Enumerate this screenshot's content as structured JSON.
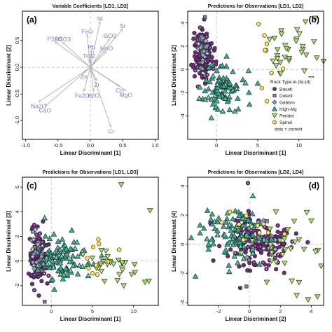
{
  "palette": {
    "basalt": "#6b2d7a",
    "dolerite": "#7d7d9a",
    "gabbro": "#9aa0bf",
    "highmg": "#3aa98f",
    "peridotite": "#a6d96a",
    "spinel": "#ffe14d",
    "arrow": "#b0b0b0",
    "vector_label": "#8080c0",
    "guide": "#bbbbbb"
  },
  "chart_data": [
    {
      "type": "biplot",
      "panel_label": "(a)",
      "title": "Variable Coefficients [LD1, LD2]",
      "xlabel": "Linear Discriminant [1]",
      "ylabel": "Linear Discriminant [2]",
      "xlim": [
        -1.05,
        1.05
      ],
      "ylim": [
        -1.35,
        1.05
      ],
      "xticks": [
        "-1.0",
        "-0.5",
        "0.0",
        "0.5",
        "1.0"
      ],
      "xtick_values": [
        -1.0,
        -0.5,
        0.0,
        0.5,
        1.0
      ],
      "yticks": [
        "-1.0",
        "-0.5",
        "0.0",
        "0.5"
      ],
      "ytick_values": [
        -1.0,
        -0.5,
        0.0,
        0.5
      ],
      "vectors": [
        {
          "name": "Ni",
          "x": 0.15,
          "y": 0.86
        },
        {
          "name": "Sr",
          "x": 0.5,
          "y": 0.72
        },
        {
          "name": "FeO",
          "x": -0.05,
          "y": 0.62
        },
        {
          "name": "SiO2",
          "x": 0.3,
          "y": 0.54
        },
        {
          "name": "P2O5",
          "x": -0.55,
          "y": 0.48
        },
        {
          "name": "Al2O3",
          "x": -0.43,
          "y": 0.47
        },
        {
          "name": "Rb",
          "x": 0.02,
          "y": 0.33
        },
        {
          "name": "MnO",
          "x": 0.25,
          "y": 0.3
        },
        {
          "name": "TiO2",
          "x": -0.02,
          "y": 0.16
        },
        {
          "name": "Zn",
          "x": -0.1,
          "y": -0.1
        },
        {
          "name": "Zr",
          "x": 0.1,
          "y": -0.25
        },
        {
          "name": "Co",
          "x": 0.45,
          "y": -0.35
        },
        {
          "name": "K2O",
          "x": 0.05,
          "y": -0.45
        },
        {
          "name": "Fe2O3",
          "x": -0.1,
          "y": -0.45
        },
        {
          "name": "MgO",
          "x": 0.55,
          "y": -0.44
        },
        {
          "name": "Na2O",
          "x": -0.8,
          "y": -0.65
        },
        {
          "name": "CaO",
          "x": -0.7,
          "y": -0.73
        },
        {
          "name": "Cr",
          "x": 0.32,
          "y": -1.12
        }
      ]
    },
    {
      "type": "scatter",
      "panel_label": "(b)",
      "title": "Predictions for Observations [LD1, LD2]",
      "xlabel": "Linear Discriminant [1]",
      "ylabel": "Linear Discriminant [2]",
      "xlim": [
        -3.5,
        13
      ],
      "ylim": [
        -6,
        5
      ],
      "xticks": [
        "0",
        "5",
        "10"
      ],
      "xtick_values": [
        0,
        5,
        10
      ],
      "yticks": [
        "-4",
        "-2",
        "0",
        "2",
        "4"
      ],
      "ytick_values": [
        -4,
        -2,
        0,
        2,
        4
      ],
      "legend": {
        "title": "Rock Type in (b)-(d)",
        "placement": "bottom-right",
        "entries": [
          "Basalt",
          "Dolerit",
          "Gabbro",
          "High-Mg",
          "Peridot",
          "Spinel"
        ],
        "note": "dots = correct"
      },
      "series": [
        {
          "name": "Basalt",
          "shape": "circle",
          "cx": -1.6,
          "cy": 1.3,
          "sx": 0.55,
          "sy": 1.0,
          "n": 140,
          "extra": [
            [
              -1.5,
              4.3
            ],
            [
              -2.0,
              3.6
            ],
            [
              -1.2,
              2.8
            ]
          ]
        },
        {
          "name": "Dolerit",
          "shape": "square",
          "cx": -1.7,
          "cy": 1.8,
          "sx": 0.3,
          "sy": 0.5,
          "n": 12,
          "extra": [
            [
              -1.4,
              4.5
            ]
          ]
        },
        {
          "name": "Gabbro",
          "shape": "diamond",
          "cx": -1.6,
          "cy": 2.0,
          "sx": 0.35,
          "sy": 0.6,
          "n": 25,
          "extra": []
        },
        {
          "name": "High-Mg",
          "shape": "triangle-up",
          "cx": 0.8,
          "cy": -1.5,
          "sx": 1.2,
          "sy": 1.1,
          "n": 95,
          "extra": [
            [
              4.0,
              -3.0
            ],
            [
              5.0,
              -1.2
            ]
          ]
        },
        {
          "name": "Peridot",
          "shape": "triangle-down",
          "cx": 8.5,
          "cy": 1.8,
          "sx": 2.0,
          "sy": 1.2,
          "n": 30,
          "extra": [
            [
              12.0,
              4.4
            ],
            [
              10.8,
              4.1
            ],
            [
              11.5,
              -0.8
            ],
            [
              9.5,
              -1.3
            ]
          ]
        },
        {
          "name": "Spinel",
          "shape": "circle",
          "cx": 6.0,
          "cy": 0.5,
          "sx": 0.9,
          "sy": 1.5,
          "n": 8,
          "extra": [
            [
              7.2,
              -3.6
            ],
            [
              5.5,
              -1.6
            ],
            [
              6.1,
              2.2
            ]
          ]
        }
      ]
    },
    {
      "type": "scatter",
      "panel_label": "(c)",
      "title": "Predictions for Observations [LD1, LD3]",
      "xlabel": "Linear Discriminant [1]",
      "ylabel": "Linear Discriminant [3]",
      "xlim": [
        -3.5,
        13
      ],
      "ylim": [
        -3.6,
        6.8
      ],
      "xticks": [
        "0",
        "5",
        "10"
      ],
      "xtick_values": [
        0,
        5,
        10
      ],
      "yticks": [
        "-2",
        "0",
        "2",
        "4",
        "6"
      ],
      "ytick_values": [
        -2,
        0,
        2,
        4,
        6
      ],
      "series": [
        {
          "name": "Basalt",
          "shape": "circle",
          "cx": -1.6,
          "cy": 0.2,
          "sx": 0.6,
          "sy": 1.0,
          "n": 140,
          "extra": [
            [
              -1.5,
              -2.8
            ],
            [
              -1.0,
              3.2
            ]
          ]
        },
        {
          "name": "Dolerit",
          "shape": "square",
          "cx": -1.5,
          "cy": 0.1,
          "sx": 0.4,
          "sy": 0.8,
          "n": 12,
          "extra": [
            [
              -0.8,
              -3.3
            ]
          ]
        },
        {
          "name": "Gabbro",
          "shape": "diamond",
          "cx": -1.6,
          "cy": 0.3,
          "sx": 0.4,
          "sy": 0.7,
          "n": 25,
          "extra": []
        },
        {
          "name": "High-Mg",
          "shape": "triangle-up",
          "cx": 1.5,
          "cy": 0.2,
          "sx": 1.5,
          "sy": 0.8,
          "n": 95,
          "extra": [
            [
              -0.8,
              3.5
            ],
            [
              2.5,
              2.5
            ],
            [
              4.5,
              -1.2
            ]
          ]
        },
        {
          "name": "Peridot",
          "shape": "triangle-down",
          "cx": 7.5,
          "cy": -0.5,
          "sx": 1.8,
          "sy": 0.7,
          "n": 30,
          "extra": [
            [
              8.5,
              6.2
            ],
            [
              12.0,
              4.1
            ],
            [
              8.8,
              -2.0
            ]
          ]
        },
        {
          "name": "Spinel",
          "shape": "circle",
          "cx": 5.5,
          "cy": 0.5,
          "sx": 1.1,
          "sy": 0.8,
          "n": 8,
          "extra": [
            [
              5.0,
              -1.0
            ],
            [
              5.6,
              -1.1
            ]
          ]
        }
      ]
    },
    {
      "type": "scatter",
      "panel_label": "(d)",
      "title": "Predictions for Observations [LD2, LD4]",
      "xlabel": "Linear Discriminant [2]",
      "ylabel": "Linear Discriminant [4]",
      "xlim": [
        -4,
        4.8
      ],
      "ylim": [
        -4.2,
        4.6
      ],
      "xticks": [
        "-2",
        "0",
        "2",
        "4"
      ],
      "xtick_values": [
        -2,
        0,
        2,
        4
      ],
      "yticks": [
        "-4",
        "-2",
        "0",
        "2",
        "4"
      ],
      "ytick_values": [
        -4,
        -2,
        0,
        2,
        4
      ],
      "series": [
        {
          "name": "Basalt",
          "shape": "circle",
          "cx": 0.6,
          "cy": 0.0,
          "sx": 1.1,
          "sy": 1.0,
          "n": 140,
          "extra": [
            [
              -0.1,
              4.2
            ],
            [
              -0.6,
              -3.0
            ]
          ]
        },
        {
          "name": "Dolerit",
          "shape": "square",
          "cx": 0.8,
          "cy": 0.2,
          "sx": 0.6,
          "sy": 0.7,
          "n": 12,
          "extra": [
            [
              -0.2,
              -2.9
            ]
          ]
        },
        {
          "name": "Gabbro",
          "shape": "diamond",
          "cx": 0.9,
          "cy": 0.2,
          "sx": 0.6,
          "sy": 0.7,
          "n": 25,
          "extra": []
        },
        {
          "name": "High-Mg",
          "shape": "triangle-up",
          "cx": -0.8,
          "cy": 0.5,
          "sx": 1.1,
          "sy": 0.9,
          "n": 95,
          "extra": [
            [
              -3.5,
              -2.2
            ],
            [
              -2.0,
              1.8
            ]
          ]
        },
        {
          "name": "Peridot",
          "shape": "triangle-down",
          "cx": 2.2,
          "cy": -0.3,
          "sx": 1.2,
          "sy": 1.2,
          "n": 30,
          "extra": [
            [
              3.8,
              -3.8
            ],
            [
              4.4,
              -3.6
            ]
          ]
        },
        {
          "name": "Spinel",
          "shape": "circle",
          "cx": -0.1,
          "cy": 1.5,
          "sx": 1.2,
          "sy": 0.9,
          "n": 8,
          "extra": [
            [
              -1.8,
              1.5
            ],
            [
              -0.4,
              0.3
            ]
          ]
        }
      ]
    }
  ]
}
